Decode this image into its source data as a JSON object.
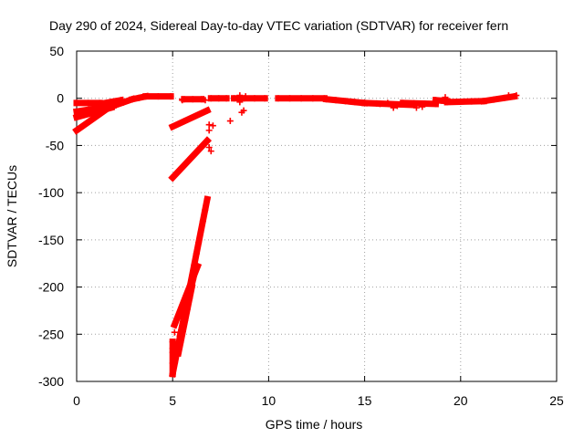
{
  "chart_data": {
    "type": "scatter",
    "title": "Day 290 of 2024, Sidereal Day-to-day VTEC variation (SDTVAR) for receiver fern",
    "xlabel": "GPS time / hours",
    "ylabel": "SDTVAR / TECUs",
    "xlim": [
      0,
      25
    ],
    "ylim": [
      -300,
      50
    ],
    "xticks": [
      0,
      5,
      10,
      15,
      20,
      25
    ],
    "yticks": [
      50,
      0,
      -50,
      -100,
      -150,
      -200,
      -250,
      -300
    ],
    "grid": true,
    "marker": "+",
    "color": "#ff0000",
    "segments": [
      {
        "from": [
          0.0,
          -5
        ],
        "to": [
          1.2,
          -5
        ]
      },
      {
        "from": [
          0.0,
          -14
        ],
        "to": [
          1.9,
          -8
        ]
      },
      {
        "from": [
          0.0,
          -20
        ],
        "to": [
          1.8,
          -10
        ]
      },
      {
        "from": [
          0.0,
          -34
        ],
        "to": [
          1.6,
          -11
        ]
      },
      {
        "from": [
          1.2,
          -6
        ],
        "to": [
          2.3,
          -2
        ]
      },
      {
        "from": [
          1.5,
          -11
        ],
        "to": [
          2.9,
          -1
        ]
      },
      {
        "from": [
          2.9,
          -1
        ],
        "to": [
          3.6,
          2
        ]
      },
      {
        "from": [
          3.6,
          2
        ],
        "to": [
          4.9,
          2
        ]
      },
      {
        "from": [
          5.0,
          -30
        ],
        "to": [
          6.8,
          -13
        ]
      },
      {
        "from": [
          5.6,
          -1
        ],
        "to": [
          6.5,
          -1
        ]
      },
      {
        "from": [
          5.0,
          -84
        ],
        "to": [
          6.8,
          -45
        ]
      },
      {
        "from": [
          5.0,
          -258
        ],
        "to": [
          5.0,
          -292
        ]
      },
      {
        "from": [
          5.0,
          -292
        ],
        "to": [
          6.8,
          -107
        ]
      },
      {
        "from": [
          5.1,
          -240
        ],
        "to": [
          6.3,
          -178
        ]
      },
      {
        "from": [
          5.3,
          -270
        ],
        "to": [
          6.0,
          -200
        ]
      },
      {
        "from": [
          5.4,
          -250
        ],
        "to": [
          6.2,
          -180
        ]
      },
      {
        "from": [
          7.0,
          0
        ],
        "to": [
          7.8,
          0
        ]
      },
      {
        "from": [
          8.2,
          0
        ],
        "to": [
          9.8,
          0
        ]
      },
      {
        "from": [
          10.5,
          0
        ],
        "to": [
          12.9,
          0
        ]
      },
      {
        "from": [
          13.0,
          -1
        ],
        "to": [
          15.0,
          -5
        ]
      },
      {
        "from": [
          15.0,
          -5
        ],
        "to": [
          17.5,
          -7
        ]
      },
      {
        "from": [
          17.0,
          -5
        ],
        "to": [
          18.7,
          -6
        ]
      },
      {
        "from": [
          18.7,
          -2
        ],
        "to": [
          19.3,
          -3
        ]
      },
      {
        "from": [
          19.3,
          -4
        ],
        "to": [
          21.2,
          -3
        ]
      },
      {
        "from": [
          21.2,
          -3
        ],
        "to": [
          22.8,
          2
        ]
      }
    ],
    "points": [
      [
        5.0,
        -258
      ],
      [
        5.0,
        -265
      ],
      [
        5.1,
        -248
      ],
      [
        5.5,
        -1
      ],
      [
        5.5,
        -2
      ],
      [
        6.6,
        -1
      ],
      [
        6.7,
        -2
      ],
      [
        6.9,
        -28
      ],
      [
        6.9,
        -34
      ],
      [
        7.1,
        -29
      ],
      [
        6.9,
        -52
      ],
      [
        7.0,
        -56
      ],
      [
        8.0,
        -24
      ],
      [
        8.4,
        0
      ],
      [
        8.5,
        -4
      ],
      [
        8.6,
        -15
      ],
      [
        8.7,
        -13
      ],
      [
        8.5,
        3
      ],
      [
        8.8,
        2
      ],
      [
        15.8,
        -6
      ],
      [
        16.2,
        -5
      ],
      [
        16.5,
        -10
      ],
      [
        16.7,
        -8
      ],
      [
        17.7,
        -10
      ],
      [
        18.0,
        -9
      ],
      [
        19.2,
        1
      ],
      [
        22.5,
        3
      ],
      [
        22.9,
        3
      ]
    ]
  }
}
